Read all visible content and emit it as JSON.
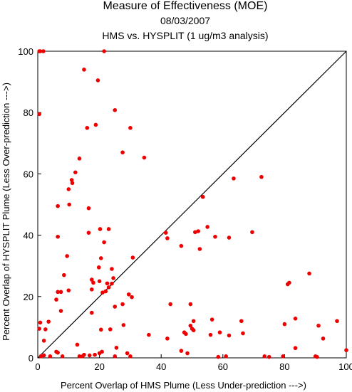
{
  "chart_data": {
    "type": "scatter",
    "title": "Measure of Effectiveness (MOE)",
    "subtitle1": "08/03/2007",
    "subtitle2": "HMS vs. HYSPLIT  (1 ug/m3 analysis)",
    "xlabel": "Percent Overlap of HMS Plume (Less Under-prediction --->)",
    "ylabel": "Percent Overlap of HYSPLIT Plume (Less Over-prediction --->)",
    "xlim": [
      0,
      100
    ],
    "ylim": [
      0,
      100
    ],
    "x_ticks": [
      0,
      20,
      40,
      60,
      80,
      100
    ],
    "y_ticks": [
      0,
      20,
      40,
      60,
      80,
      100
    ],
    "reference_line": {
      "from": [
        0,
        0
      ],
      "to": [
        100,
        100
      ],
      "color": "#000000"
    },
    "point_color": "#ee0000",
    "points": [
      [
        0.5,
        100
      ],
      [
        0.8,
        100
      ],
      [
        1.8,
        100
      ],
      [
        21.5,
        100
      ],
      [
        15,
        94
      ],
      [
        19.5,
        90.5
      ],
      [
        0.5,
        79.5
      ],
      [
        25,
        80.8
      ],
      [
        16,
        75
      ],
      [
        18.8,
        76
      ],
      [
        30,
        75
      ],
      [
        27.5,
        67
      ],
      [
        34.5,
        65.3
      ],
      [
        13.5,
        65
      ],
      [
        12.2,
        60.5
      ],
      [
        11,
        58
      ],
      [
        11.2,
        57
      ],
      [
        72.5,
        59
      ],
      [
        63.5,
        58.5
      ],
      [
        10,
        55
      ],
      [
        6.5,
        49.5
      ],
      [
        10.2,
        50
      ],
      [
        16.5,
        48.8
      ],
      [
        53.5,
        52.5
      ],
      [
        6.5,
        39.5
      ],
      [
        16.5,
        40.8
      ],
      [
        20.2,
        42
      ],
      [
        23,
        42
      ],
      [
        41.5,
        40.8
      ],
      [
        42,
        39
      ],
      [
        51,
        41
      ],
      [
        52,
        41.3
      ],
      [
        55,
        42.7
      ],
      [
        57.5,
        39.5
      ],
      [
        62,
        39.2
      ],
      [
        69.5,
        41
      ],
      [
        21.5,
        37.7
      ],
      [
        46.5,
        36.5
      ],
      [
        52.5,
        35.5
      ],
      [
        9.5,
        33.2
      ],
      [
        20.5,
        32.5
      ],
      [
        30.8,
        32.7
      ],
      [
        19.8,
        29.5
      ],
      [
        24,
        29
      ],
      [
        8.5,
        27
      ],
      [
        17.5,
        25.5
      ],
      [
        18,
        24.5
      ],
      [
        20,
        25
      ],
      [
        22.5,
        24.3
      ],
      [
        24.5,
        26
      ],
      [
        88,
        27.5
      ],
      [
        6.5,
        21.5
      ],
      [
        7.5,
        21.5
      ],
      [
        10,
        22
      ],
      [
        17.5,
        22.3
      ],
      [
        21,
        21.3
      ],
      [
        22,
        21.7
      ],
      [
        23,
        23
      ],
      [
        24,
        24.2
      ],
      [
        29.5,
        20.7
      ],
      [
        30.5,
        19.8
      ],
      [
        81,
        24
      ],
      [
        81.5,
        24.5
      ],
      [
        6,
        19
      ],
      [
        27.5,
        17.5
      ],
      [
        25,
        16.7
      ],
      [
        43,
        17.5
      ],
      [
        49.5,
        17.5
      ],
      [
        7.5,
        15.3
      ],
      [
        17.5,
        14.7
      ],
      [
        56.5,
        12.5
      ],
      [
        66,
        12
      ],
      [
        83.5,
        12.8
      ],
      [
        97,
        12
      ],
      [
        0.8,
        11.5
      ],
      [
        3.5,
        11.8
      ],
      [
        50.5,
        12
      ],
      [
        80,
        11
      ],
      [
        91,
        10.5
      ],
      [
        0.5,
        9.5
      ],
      [
        2.5,
        9.3
      ],
      [
        20.5,
        9.2
      ],
      [
        23.5,
        9.3
      ],
      [
        27.8,
        10.7
      ],
      [
        49.5,
        10.5
      ],
      [
        50,
        9.5
      ],
      [
        50.5,
        9
      ],
      [
        59,
        8.3
      ],
      [
        66.5,
        8
      ],
      [
        62,
        7.3
      ],
      [
        56,
        7.5
      ],
      [
        47.5,
        8.3
      ],
      [
        48,
        7.8
      ],
      [
        36,
        7.5
      ],
      [
        42,
        6.3
      ],
      [
        2,
        5.6
      ],
      [
        12.8,
        4.3
      ],
      [
        25.5,
        3.3
      ],
      [
        83.5,
        3.2
      ],
      [
        92.5,
        6.3
      ],
      [
        6,
        2
      ],
      [
        6.5,
        1.7
      ],
      [
        20,
        1.5
      ],
      [
        20.8,
        2
      ],
      [
        18.5,
        1
      ],
      [
        16.8,
        0.8
      ],
      [
        15,
        1
      ],
      [
        46.5,
        2.3
      ],
      [
        48.5,
        1.5
      ],
      [
        58.5,
        0.3
      ],
      [
        61,
        0.5
      ],
      [
        73.5,
        0.5
      ],
      [
        75,
        0.3
      ],
      [
        79.5,
        0.5
      ],
      [
        90,
        0.5
      ],
      [
        90.5,
        0.3
      ],
      [
        100,
        2.5
      ],
      [
        1,
        0.5
      ],
      [
        2,
        0.8
      ],
      [
        4,
        0.5
      ],
      [
        8,
        0.5
      ],
      [
        13.5,
        0.5
      ],
      [
        14.5,
        0.5
      ],
      [
        25,
        0.5
      ],
      [
        29,
        1.5
      ],
      [
        30,
        0.5
      ]
    ]
  }
}
